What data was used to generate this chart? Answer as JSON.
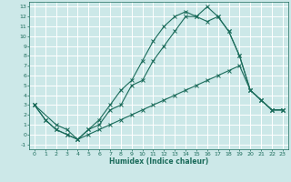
{
  "xlabel": "Humidex (Indice chaleur)",
  "xlim": [
    -0.5,
    23.5
  ],
  "ylim": [
    -1.5,
    13.5
  ],
  "xticks": [
    0,
    1,
    2,
    3,
    4,
    5,
    6,
    7,
    8,
    9,
    10,
    11,
    12,
    13,
    14,
    15,
    16,
    17,
    18,
    19,
    20,
    21,
    22,
    23
  ],
  "yticks": [
    -1,
    0,
    1,
    2,
    3,
    4,
    5,
    6,
    7,
    8,
    9,
    10,
    11,
    12,
    13
  ],
  "bg_color": "#cce8e8",
  "line_color": "#1a6b5a",
  "grid_color": "#ffffff",
  "line1_x": [
    0,
    1,
    2,
    3,
    4,
    5,
    6,
    7,
    8,
    9,
    10,
    11,
    12,
    13,
    14,
    15,
    16,
    17,
    18,
    19,
    20,
    21,
    22,
    23
  ],
  "line1_y": [
    3,
    1.5,
    0.5,
    0,
    -0.5,
    0.5,
    1.5,
    3,
    4.5,
    5.5,
    7.5,
    9.5,
    11,
    12,
    12.5,
    12,
    13,
    12,
    10.5,
    8,
    4.5,
    3.5,
    2.5,
    2.5
  ],
  "line2_x": [
    0,
    2,
    3,
    4,
    5,
    6,
    7,
    8,
    9,
    10,
    11,
    12,
    13,
    14,
    15,
    16,
    17,
    18,
    19,
    20,
    21,
    22,
    23
  ],
  "line2_y": [
    3,
    1,
    0.5,
    -0.5,
    0.5,
    1,
    2.5,
    3,
    5,
    5.5,
    7.5,
    9,
    10.5,
    12,
    12,
    11.5,
    12,
    10.5,
    8,
    4.5,
    3.5,
    2.5,
    2.5
  ],
  "line3_x": [
    0,
    1,
    2,
    3,
    4,
    5,
    6,
    7,
    8,
    9,
    10,
    11,
    12,
    13,
    14,
    15,
    16,
    17,
    18,
    19,
    20,
    21,
    22,
    23
  ],
  "line3_y": [
    3,
    1.5,
    0.5,
    0,
    -0.5,
    0,
    0.5,
    1,
    1.5,
    2,
    2.5,
    3,
    3.5,
    4,
    4.5,
    5,
    5.5,
    6,
    6.5,
    7,
    4.5,
    3.5,
    2.5,
    2.5
  ]
}
